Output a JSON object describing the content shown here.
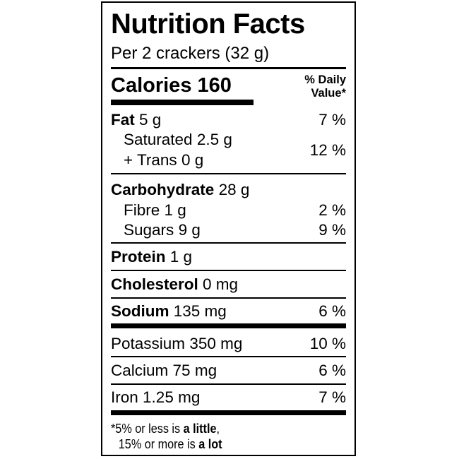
{
  "title": "Nutrition Facts",
  "serving": "Per 2 crackers (32 g)",
  "calories": {
    "label": "Calories",
    "value": "160"
  },
  "daily_value_header": [
    "% Daily",
    "Value*"
  ],
  "nutrients": {
    "fat": {
      "name": "Fat",
      "amount": "5 g",
      "dv": "7 %"
    },
    "saturated": {
      "name": "Saturated",
      "amount": "2.5 g"
    },
    "trans": {
      "name": "+ Trans",
      "amount": "0 g"
    },
    "sat_trans_dv": "12 %",
    "carbohydrate": {
      "name": "Carbohydrate",
      "amount": "28 g"
    },
    "fibre": {
      "name": "Fibre",
      "amount": "1 g",
      "dv": "2 %"
    },
    "sugars": {
      "name": "Sugars",
      "amount": "9 g",
      "dv": "9 %"
    },
    "protein": {
      "name": "Protein",
      "amount": "1 g"
    },
    "cholesterol": {
      "name": "Cholesterol",
      "amount": "0 mg"
    },
    "sodium": {
      "name": "Sodium",
      "amount": "135 mg",
      "dv": "6 %"
    },
    "potassium": {
      "name": "Potassium",
      "amount": "350 mg",
      "dv": "10 %"
    },
    "calcium": {
      "name": "Calcium",
      "amount": "75 mg",
      "dv": "6 %"
    },
    "iron": {
      "name": "Iron",
      "amount": "1.25 mg",
      "dv": "7 %"
    }
  },
  "footnote": {
    "line1_prefix": "*5% or less is ",
    "line1_bold": "a little",
    "line1_suffix": ",",
    "line2_prefix": "15% or more is ",
    "line2_bold": "a lot"
  }
}
